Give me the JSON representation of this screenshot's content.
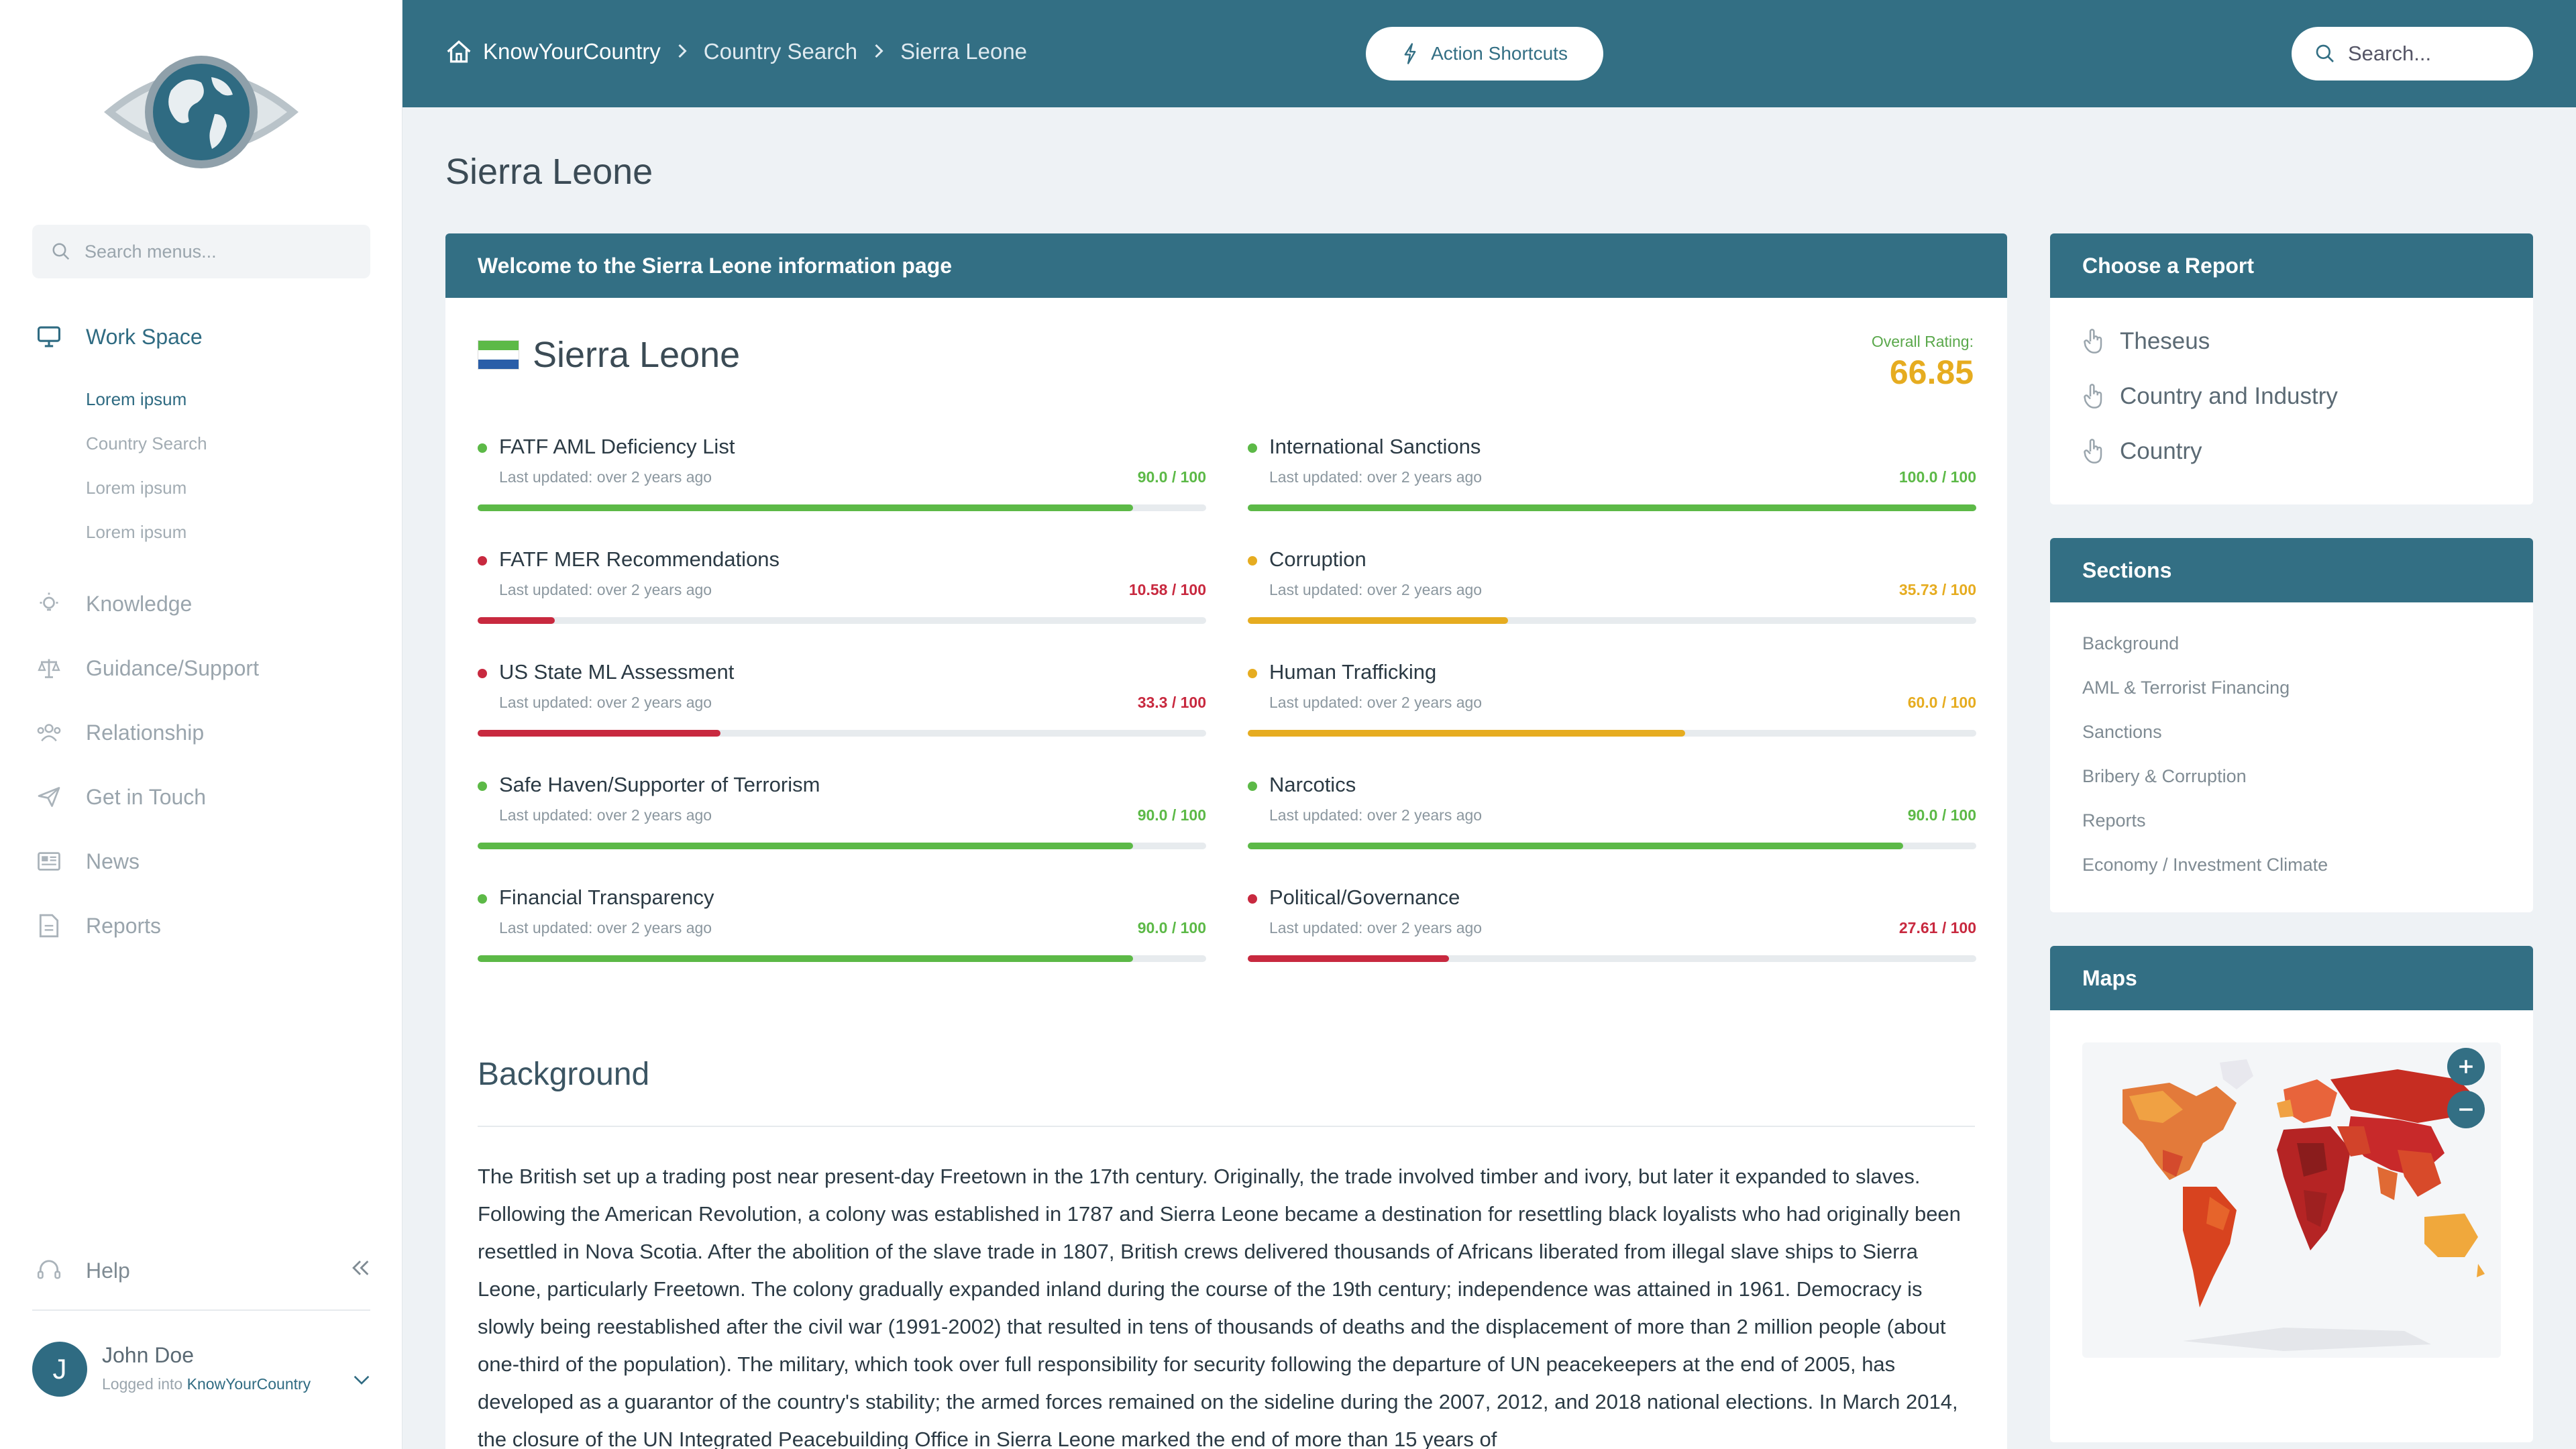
{
  "sidebar": {
    "search_placeholder": "Search menus...",
    "items": [
      {
        "label": "Work Space",
        "icon": "monitor-icon",
        "active": true
      },
      {
        "label": "Knowledge",
        "icon": "lightbulb-icon"
      },
      {
        "label": "Guidance/Support",
        "icon": "scales-icon"
      },
      {
        "label": "Relationship",
        "icon": "users-icon"
      },
      {
        "label": "Get in Touch",
        "icon": "paper-plane-icon"
      },
      {
        "label": "News",
        "icon": "newspaper-icon"
      },
      {
        "label": "Reports",
        "icon": "document-icon"
      }
    ],
    "subitems": [
      "Lorem ipsum",
      "Country Search",
      "Lorem ipsum",
      "Lorem ipsum"
    ],
    "help_label": "Help",
    "user": {
      "initial": "J",
      "name": "John Doe",
      "logged_prefix": "Logged into",
      "app": "KnowYourCountry"
    }
  },
  "topbar": {
    "crumbs": [
      "KnowYourCountry",
      "Country Search",
      "Sierra Leone"
    ],
    "shortcuts_label": "Action Shortcuts",
    "search_placeholder": "Search..."
  },
  "page": {
    "title": "Sierra Leone"
  },
  "main": {
    "header": "Welcome to the Sierra Leone information page",
    "country": "Sierra Leone",
    "rating_label": "Overall Rating:",
    "rating": "66.85",
    "metrics": [
      {
        "name": "FATF AML Deficiency List",
        "updated": "Last updated: over 2 years ago",
        "score": "90.0 / 100",
        "value": 90.0,
        "color": "#5cb947"
      },
      {
        "name": "International Sanctions",
        "updated": "Last updated: over 2 years ago",
        "score": "100.0 / 100",
        "value": 100.0,
        "color": "#5cb947"
      },
      {
        "name": "FATF MER Recommendations",
        "updated": "Last updated: over 2 years ago",
        "score": "10.58 / 100",
        "value": 10.58,
        "color": "#c8293f"
      },
      {
        "name": "Corruption",
        "updated": "Last updated: over 2 years ago",
        "score": "35.73 / 100",
        "value": 35.73,
        "color": "#e6ac20"
      },
      {
        "name": "US State ML Assessment",
        "updated": "Last updated: over 2 years ago",
        "score": "33.3 / 100",
        "value": 33.3,
        "color": "#c8293f"
      },
      {
        "name": "Human Trafficking",
        "updated": "Last updated: over 2 years ago",
        "score": "60.0 / 100",
        "value": 60.0,
        "color": "#e6ac20"
      },
      {
        "name": "Safe Haven/Supporter of Terrorism",
        "updated": "Last updated: over 2 years ago",
        "score": "90.0 / 100",
        "value": 90.0,
        "color": "#5cb947"
      },
      {
        "name": "Narcotics",
        "updated": "Last updated: over 2 years ago",
        "score": "90.0 / 100",
        "value": 90.0,
        "color": "#5cb947"
      },
      {
        "name": "Financial Transparency",
        "updated": "Last updated: over 2 years ago",
        "score": "90.0 / 100",
        "value": 90.0,
        "color": "#5cb947"
      },
      {
        "name": "Political/Governance",
        "updated": "Last updated: over 2 years ago",
        "score": "27.61 / 100",
        "value": 27.61,
        "color": "#c8293f"
      }
    ],
    "background_title": "Background",
    "background_text": "The British set up a trading post near present-day Freetown in the 17th century. Originally, the trade involved timber and ivory, but later it expanded to slaves. Following the American Revolution, a colony was established in 1787 and Sierra Leone became a destination for resettling black loyalists who had originally been resettled in Nova Scotia. After the abolition of the slave trade in 1807, British crews delivered thousands of Africans liberated from illegal slave ships to Sierra Leone, particularly Freetown. The colony gradually expanded inland during the course of the 19th century; independence was attained in 1961. Democracy is slowly being reestablished after the civil war (1991-2002) that resulted in tens of thousands of deaths and the displacement of more than 2 million people (about one-third of the population). The military, which took over full responsibility for security following the departure of UN peacekeepers at the end of 2005, has developed as a guarantor of the country's stability; the armed forces remained on the sideline during the 2007, 2012, and 2018 national elections. In March 2014, the closure of the UN Integrated Peacebuilding Office in Sierra Leone marked the end of more than 15 years of"
  },
  "right": {
    "report_header": "Choose a Report",
    "reports": [
      "Theseus",
      "Country and Industry",
      "Country"
    ],
    "sections_header": "Sections",
    "sections": [
      "Background",
      "AML & Terrorist Financing",
      "Sanctions",
      "Bribery & Corruption",
      "Reports",
      "Economy / Investment Climate"
    ],
    "maps_header": "Maps"
  },
  "colors": {
    "brand": "#336f84",
    "green": "#5cb947",
    "red": "#c8293f",
    "amber": "#e6ac20"
  }
}
